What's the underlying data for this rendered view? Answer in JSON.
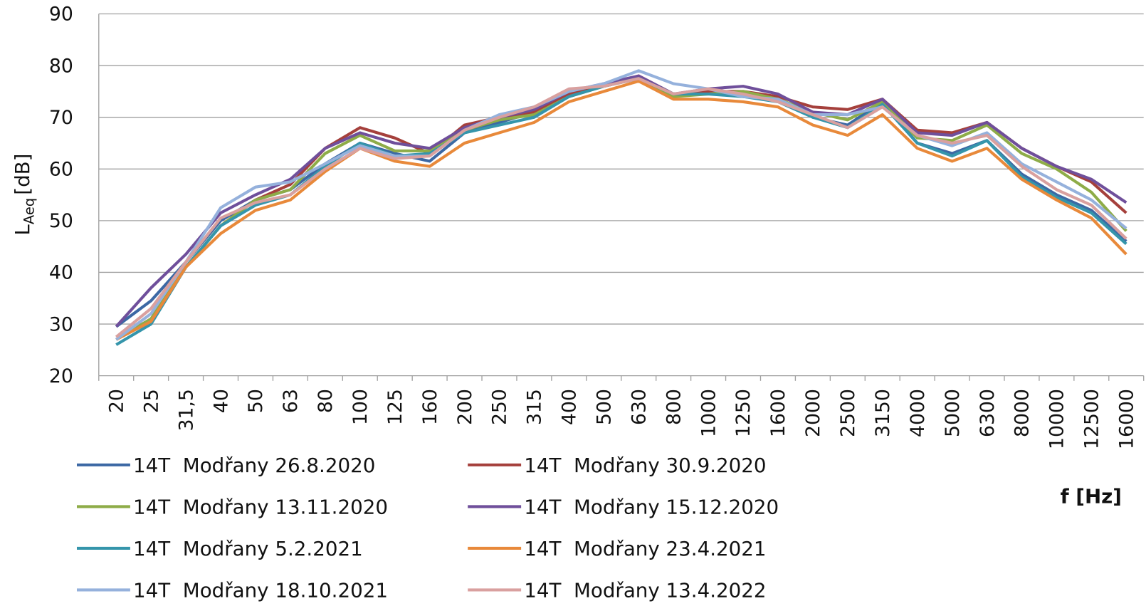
{
  "chart_data": {
    "type": "line",
    "ylabel": {
      "main": "L",
      "sub": "Aeq",
      "unit": "[dB]"
    },
    "xlabel": "f [Hz]",
    "categories": [
      "20",
      "25",
      "31,5",
      "40",
      "50",
      "63",
      "80",
      "100",
      "125",
      "160",
      "200",
      "250",
      "315",
      "400",
      "500",
      "630",
      "800",
      "1000",
      "1250",
      "1600",
      "2000",
      "2500",
      "3150",
      "4000",
      "5000",
      "6300",
      "8000",
      "10000",
      "12500",
      "16000"
    ],
    "ylim": [
      20,
      90
    ],
    "yticks": [
      20,
      30,
      40,
      50,
      60,
      70,
      80,
      90
    ],
    "grid": true,
    "legend": "bottom",
    "series": [
      {
        "name": "14T  Modřany 26.8.2020",
        "color": "#3c68a4",
        "values": [
          29.5,
          34.5,
          42,
          50,
          54,
          56,
          61,
          65,
          63,
          61.5,
          67,
          69,
          71,
          74,
          76.5,
          77.5,
          74.5,
          75,
          74,
          73.5,
          70,
          68.5,
          73,
          65,
          63,
          65.5,
          59,
          55,
          52,
          46
        ]
      },
      {
        "name": "14T  Modřany 30.9.2020",
        "color": "#a5403c",
        "values": [
          27,
          31,
          41,
          49,
          54,
          57,
          64,
          68,
          66,
          63,
          68.5,
          70,
          71,
          74.5,
          76,
          78,
          74.5,
          75,
          75,
          74,
          72,
          71.5,
          73.5,
          67.5,
          67,
          69,
          64,
          60.5,
          57.5,
          51.5
        ]
      },
      {
        "name": "14T  Modřany 13.11.2020",
        "color": "#8eac48",
        "values": [
          27,
          31,
          41,
          49,
          54,
          56,
          63,
          66.5,
          63.5,
          63.5,
          67.5,
          69.5,
          70.5,
          74,
          76,
          77.5,
          74,
          74.5,
          75,
          73.5,
          71,
          69.5,
          73,
          66,
          65.5,
          68.5,
          63,
          60,
          55.5,
          48
        ]
      },
      {
        "name": "14T  Modřany 15.12.2020",
        "color": "#6f4f9b",
        "values": [
          29.5,
          37,
          43.5,
          51.5,
          55,
          58,
          64,
          67,
          65,
          64,
          68,
          70,
          71.5,
          75,
          76.5,
          78,
          74.5,
          75.5,
          76,
          74.5,
          71,
          70.5,
          73.5,
          67,
          66.5,
          69,
          64,
          60.5,
          58,
          53.5
        ]
      },
      {
        "name": "14T  Modřany 5.2.2021",
        "color": "#3595ab",
        "values": [
          26,
          30,
          41,
          49,
          53,
          55,
          60.5,
          65,
          62.5,
          63,
          67,
          68.5,
          70,
          74,
          76,
          77.5,
          74.5,
          74.5,
          74,
          73,
          70,
          68,
          72.5,
          65,
          62.5,
          65.5,
          58.5,
          54.5,
          51.5,
          45.5
        ]
      },
      {
        "name": "14T  Modřany 23.4.2021",
        "color": "#e8893a",
        "values": [
          27,
          30.5,
          41,
          47.5,
          52,
          54,
          59.5,
          64,
          61.5,
          60.5,
          65,
          67,
          69,
          73,
          75,
          77,
          73.5,
          73.5,
          73,
          72,
          68.5,
          66.5,
          70.5,
          64,
          61.5,
          64,
          58,
          54,
          50.5,
          43.5
        ]
      },
      {
        "name": "14T  Modřany 18.10.2021",
        "color": "#95b1dc",
        "values": [
          27,
          32,
          42,
          52.5,
          56.5,
          57.5,
          61,
          64.5,
          62.5,
          62.5,
          67.5,
          70.5,
          72,
          75,
          76.5,
          79,
          76.5,
          75.5,
          74,
          73.5,
          70.5,
          70.5,
          72,
          66.5,
          64.5,
          67,
          61,
          57.5,
          54,
          48.5
        ]
      },
      {
        "name": "14T  Modřany 13.4.2022",
        "color": "#d9a09f",
        "values": [
          27.5,
          33,
          42,
          50.5,
          53.5,
          55,
          60,
          64,
          62,
          62.5,
          67.5,
          70,
          72,
          75.5,
          76,
          77.5,
          74.5,
          75.5,
          74.5,
          73,
          70.5,
          68,
          72,
          66.5,
          65,
          66.5,
          60.5,
          56,
          53,
          46.5
        ]
      }
    ]
  }
}
